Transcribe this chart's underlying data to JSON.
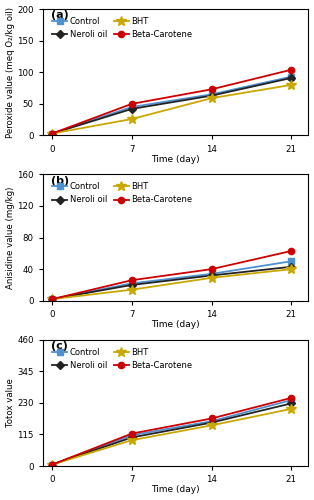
{
  "time": [
    0,
    7,
    14,
    21
  ],
  "panel_a": {
    "title": "(a)",
    "ylabel": "Peroxide value (meq O₂/kg oil)",
    "ylim": [
      0,
      200
    ],
    "yticks": [
      0,
      50,
      100,
      150,
      200
    ],
    "series": {
      "Control": {
        "values": [
          3,
          45,
          65,
          93
        ],
        "color": "#4E90D0",
        "marker": "s"
      },
      "Neroli oil": {
        "values": [
          3,
          42,
          63,
          91
        ],
        "color": "#222222",
        "marker": "D"
      },
      "BHT": {
        "values": [
          3,
          26,
          59,
          80
        ],
        "color": "#C8A800",
        "marker": "*"
      },
      "Beta-Carotene": {
        "values": [
          3,
          50,
          73,
          104
        ],
        "color": "#CC0000",
        "marker": "o"
      }
    }
  },
  "panel_b": {
    "title": "(b)",
    "ylabel": "Anisidine value (mg/kg)",
    "ylim": [
      0,
      160
    ],
    "yticks": [
      0,
      40,
      80,
      120,
      160
    ],
    "series": {
      "Control": {
        "values": [
          2,
          22,
          34,
          50
        ],
        "color": "#4E90D0",
        "marker": "s"
      },
      "Neroli oil": {
        "values": [
          2,
          20,
          32,
          43
        ],
        "color": "#222222",
        "marker": "D"
      },
      "BHT": {
        "values": [
          2,
          14,
          29,
          40
        ],
        "color": "#C8A800",
        "marker": "*"
      },
      "Beta-Carotene": {
        "values": [
          2,
          26,
          40,
          63
        ],
        "color": "#CC0000",
        "marker": "o"
      }
    }
  },
  "panel_c": {
    "title": "(c)",
    "ylabel": "Totox value",
    "ylim": [
      0,
      460
    ],
    "yticks": [
      0,
      115,
      230,
      345,
      460
    ],
    "series": {
      "Control": {
        "values": [
          5,
          112,
          163,
          240
        ],
        "color": "#4E90D0",
        "marker": "s"
      },
      "Neroli oil": {
        "values": [
          5,
          104,
          158,
          228
        ],
        "color": "#222222",
        "marker": "D"
      },
      "BHT": {
        "values": [
          5,
          94,
          148,
          208
        ],
        "color": "#C8A800",
        "marker": "*"
      },
      "Beta-Carotene": {
        "values": [
          5,
          118,
          173,
          248
        ],
        "color": "#CC0000",
        "marker": "o"
      }
    }
  },
  "xlabel": "Time (day)",
  "xticks": [
    0,
    7,
    14,
    21
  ],
  "legend_order": [
    "Control",
    "Neroli oil",
    "BHT",
    "Beta-Carotene"
  ],
  "background_color": "#FFFFFF"
}
